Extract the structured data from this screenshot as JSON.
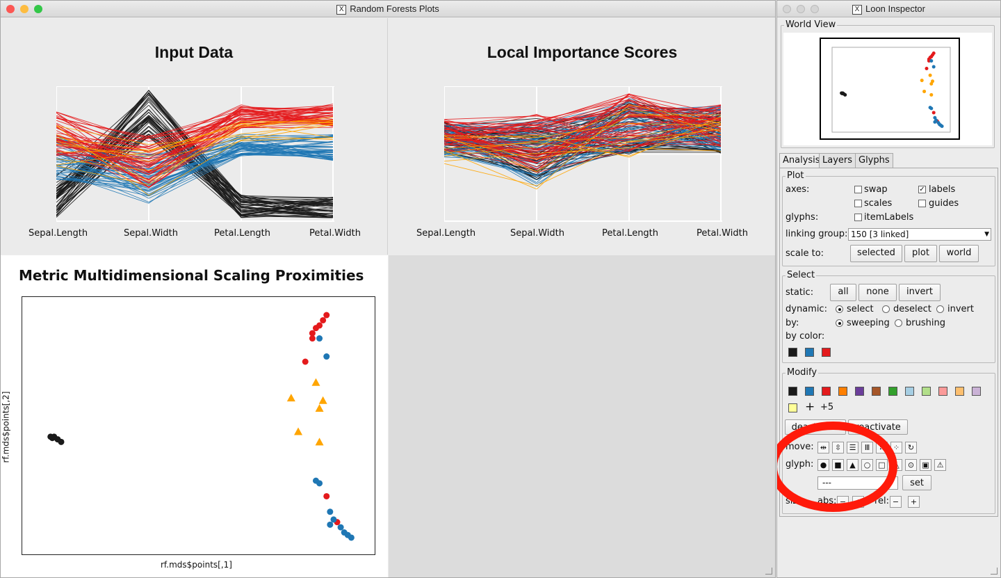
{
  "main_window": {
    "title": "Random Forests Plots",
    "panels": {
      "input_data": {
        "title": "Input Data",
        "axes": [
          "Sepal.Length",
          "Sepal.Width",
          "Petal.Length",
          "Petal.Width"
        ]
      },
      "local_importance": {
        "title": "Local Importance Scores",
        "axes": [
          "Sepal.Length",
          "Sepal.Width",
          "Petal.Length",
          "Petal.Width"
        ]
      },
      "mds": {
        "title": "Metric Multidimensional Scaling Proximities",
        "xlabel": "rf.mds$points[,1]",
        "ylabel": "rf.mds$points[,2]"
      }
    }
  },
  "inspector": {
    "title": "Loon Inspector",
    "world_view_label": "World View",
    "tabs": [
      "Analysis",
      "Layers",
      "Glyphs"
    ],
    "plot": {
      "group_label": "Plot",
      "axes_label": "axes:",
      "swap": "swap",
      "labels": "labels",
      "scales": "scales",
      "guides": "guides",
      "glyphs_label": "glyphs:",
      "item_labels": "itemLabels",
      "linking_label": "linking group:",
      "linking_value": "150  [3 linked]",
      "scale_label": "scale to:",
      "scale_buttons": [
        "selected",
        "plot",
        "world"
      ]
    },
    "select": {
      "group_label": "Select",
      "static_label": "static:",
      "static_buttons": [
        "all",
        "none",
        "invert"
      ],
      "dynamic_label": "dynamic:",
      "dynamic_options": [
        "select",
        "deselect",
        "invert"
      ],
      "by_label": "by:",
      "by_options": [
        "sweeping",
        "brushing"
      ],
      "by_color_label": "by color:"
    },
    "modify": {
      "group_label": "Modify",
      "more_colors": "+5",
      "deactivate": "deactivate",
      "reactivate": "reactivate",
      "move_label": "move:",
      "glyph_label": "glyph:",
      "glyph_value": "---",
      "set": "set",
      "size_label": "size:",
      "abs_label": "abs:",
      "rel_label": "rel:"
    }
  },
  "colors": {
    "setosa": "#1a1a1a",
    "versicolor": "#1f77b4",
    "virginica": "#e41a1c",
    "highlight": "#ffa500",
    "select_swatches": [
      "#1a1a1a",
      "#1f77b4",
      "#e41a1c"
    ],
    "modify_swatches": [
      "#1a1a1a",
      "#1f77b4",
      "#e41a1c",
      "#ff7f00",
      "#6a3d9a",
      "#a65628",
      "#33a02c",
      "#a6cee3",
      "#b2df8a",
      "#fb9a99",
      "#fdbf6f",
      "#cab2d6",
      "#ffff99"
    ]
  },
  "chart_data": [
    {
      "type": "line",
      "title": "Input Data",
      "categories": [
        "Sepal.Length",
        "Sepal.Width",
        "Petal.Length",
        "Petal.Width"
      ],
      "series": [
        {
          "class": "setosa",
          "color": "#1a1a1a",
          "profile": [
            0.18,
            0.82,
            0.1,
            0.07
          ]
        },
        {
          "class": "versicolor",
          "color": "#1f77b4",
          "profile": [
            0.48,
            0.32,
            0.57,
            0.55
          ]
        },
        {
          "class": "virginica",
          "color": "#e41a1c",
          "profile": [
            0.66,
            0.44,
            0.79,
            0.8
          ]
        },
        {
          "class": "highlight",
          "color": "#ffa500",
          "profile": [
            0.55,
            0.38,
            0.68,
            0.7
          ]
        }
      ]
    },
    {
      "type": "line",
      "title": "Local Importance Scores",
      "categories": [
        "Sepal.Length",
        "Sepal.Width",
        "Petal.Length",
        "Petal.Width"
      ],
      "series": [
        {
          "class": "setosa",
          "color": "#1a1a1a",
          "profile": [
            0.62,
            0.55,
            0.7,
            0.68
          ]
        },
        {
          "class": "versicolor",
          "color": "#1f77b4",
          "profile": [
            0.6,
            0.5,
            0.72,
            0.7
          ]
        },
        {
          "class": "virginica",
          "color": "#e41a1c",
          "profile": [
            0.65,
            0.56,
            0.74,
            0.72
          ]
        },
        {
          "class": "highlight",
          "color": "#ffa500",
          "profile": [
            0.55,
            0.48,
            0.68,
            0.64
          ]
        }
      ]
    },
    {
      "type": "scatter",
      "title": "Metric Multidimensional Scaling Proximities",
      "xlabel": "rf.mds$points[,1]",
      "ylabel": "rf.mds$points[,2]",
      "points": [
        {
          "x": 0.08,
          "y": 0.46,
          "c": "setosa"
        },
        {
          "x": 0.09,
          "y": 0.46,
          "c": "setosa"
        },
        {
          "x": 0.1,
          "y": 0.45,
          "c": "setosa"
        },
        {
          "x": 0.11,
          "y": 0.44,
          "c": "setosa"
        },
        {
          "x": 0.085,
          "y": 0.455,
          "c": "setosa"
        },
        {
          "x": 0.86,
          "y": 0.93,
          "c": "virginica"
        },
        {
          "x": 0.85,
          "y": 0.91,
          "c": "virginica"
        },
        {
          "x": 0.84,
          "y": 0.89,
          "c": "virginica"
        },
        {
          "x": 0.83,
          "y": 0.88,
          "c": "virginica"
        },
        {
          "x": 0.82,
          "y": 0.86,
          "c": "virginica"
        },
        {
          "x": 0.82,
          "y": 0.84,
          "c": "virginica"
        },
        {
          "x": 0.8,
          "y": 0.75,
          "c": "virginica"
        },
        {
          "x": 0.86,
          "y": 0.23,
          "c": "virginica"
        },
        {
          "x": 0.89,
          "y": 0.13,
          "c": "virginica"
        },
        {
          "x": 0.84,
          "y": 0.84,
          "c": "versicolor"
        },
        {
          "x": 0.86,
          "y": 0.77,
          "c": "versicolor"
        },
        {
          "x": 0.83,
          "y": 0.29,
          "c": "versicolor"
        },
        {
          "x": 0.84,
          "y": 0.28,
          "c": "versicolor"
        },
        {
          "x": 0.87,
          "y": 0.17,
          "c": "versicolor"
        },
        {
          "x": 0.88,
          "y": 0.14,
          "c": "versicolor"
        },
        {
          "x": 0.9,
          "y": 0.11,
          "c": "versicolor"
        },
        {
          "x": 0.91,
          "y": 0.09,
          "c": "versicolor"
        },
        {
          "x": 0.92,
          "y": 0.08,
          "c": "versicolor"
        },
        {
          "x": 0.93,
          "y": 0.07,
          "c": "versicolor"
        },
        {
          "x": 0.87,
          "y": 0.12,
          "c": "versicolor"
        },
        {
          "x": 0.83,
          "y": 0.67,
          "c": "highlight"
        },
        {
          "x": 0.76,
          "y": 0.61,
          "c": "highlight"
        },
        {
          "x": 0.84,
          "y": 0.57,
          "c": "highlight"
        },
        {
          "x": 0.85,
          "y": 0.6,
          "c": "highlight"
        },
        {
          "x": 0.78,
          "y": 0.48,
          "c": "highlight"
        },
        {
          "x": 0.84,
          "y": 0.44,
          "c": "highlight"
        }
      ]
    }
  ]
}
